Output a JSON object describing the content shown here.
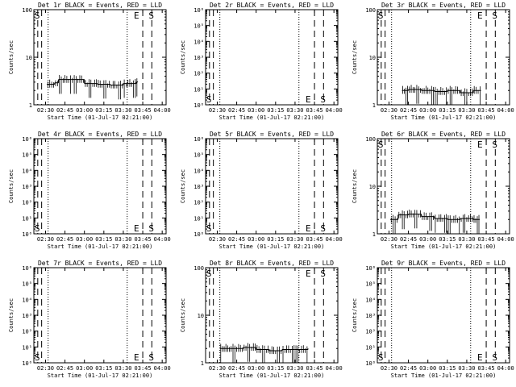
{
  "colors": {
    "background": "#ffffff",
    "foreground": "#000000"
  },
  "chart_data": [
    {
      "type": "line",
      "title": "Det 1r BLACK = Events, RED = LLD",
      "xlabel": "Start Time (01-Jul-17 02:21:00)",
      "ylabel": "Counts/sec",
      "xticks": [
        "02:30",
        "02:45",
        "03:00",
        "03:15",
        "03:30",
        "03:45",
        "04:00"
      ],
      "xlim": [
        "02:21",
        "04:03"
      ],
      "yscale": "log",
      "ylim": [
        1,
        100
      ],
      "yticks": [
        "1",
        "10",
        "100"
      ],
      "dashed_lines": [
        "02:24",
        "02:27",
        "03:45",
        "03:52"
      ],
      "dotted_lines": [
        "02:32",
        "03:33"
      ],
      "markers": [
        "S",
        "E",
        "S"
      ],
      "series": [
        {
          "x": [
            "02:31",
            "02:37",
            "02:40",
            "02:50",
            "03:00",
            "03:10",
            "03:20",
            "03:30",
            "03:40",
            "03:41"
          ],
          "values": [
            2.7,
            2.9,
            3.4,
            3.4,
            2.8,
            2.7,
            2.6,
            2.8,
            3.0,
            3.1
          ]
        }
      ]
    },
    {
      "type": "line",
      "title": "Det 2r BLACK = Events, RED = LLD",
      "xlabel": "Start Time (01-Jul-17 02:21:00)",
      "ylabel": "Counts/sec",
      "xticks": [
        "02:30",
        "02:45",
        "03:00",
        "03:15",
        "03:30",
        "03:45",
        "04:00"
      ],
      "xlim": [
        "02:21",
        "04:03"
      ],
      "yscale": "log",
      "ylim": [
        1,
        1000000
      ],
      "yticks": [
        "10⁰",
        "10¹",
        "10²",
        "10³",
        "10⁴",
        "10⁵",
        "10⁶"
      ],
      "dashed_lines": [
        "02:24",
        "02:27",
        "03:45",
        "03:52"
      ],
      "dotted_lines": [
        "02:32",
        "03:33"
      ],
      "markers": [
        "S",
        "E",
        "S"
      ],
      "series": []
    },
    {
      "type": "line",
      "title": "Det 3r BLACK = Events, RED = LLD",
      "xlabel": "Start Time (01-Jul-17 02:21:00)",
      "ylabel": "Counts/sec",
      "xticks": [
        "02:30",
        "02:45",
        "03:00",
        "03:15",
        "03:30",
        "03:45",
        "04:00"
      ],
      "xlim": [
        "02:21",
        "04:03"
      ],
      "yscale": "log",
      "ylim": [
        1,
        100
      ],
      "yticks": [
        "1",
        "10",
        "100"
      ],
      "dashed_lines": [
        "02:24",
        "02:27",
        "03:45",
        "03:52"
      ],
      "dotted_lines": [
        "02:32",
        "03:33"
      ],
      "markers": [
        "S",
        "E",
        "S"
      ],
      "series": [
        {
          "x": [
            "02:40",
            "02:45",
            "02:55",
            "03:05",
            "03:15",
            "03:25",
            "03:35",
            "03:41"
          ],
          "values": [
            2.0,
            2.1,
            2.0,
            1.9,
            2.0,
            1.8,
            2.0,
            2.0
          ]
        }
      ]
    },
    {
      "type": "line",
      "title": "Det 4r BLACK = Events, RED = LLD",
      "xlabel": "Start Time (01-Jul-17 02:21:00)",
      "ylabel": "Counts/sec",
      "xticks": [
        "02:30",
        "02:45",
        "03:00",
        "03:15",
        "03:30",
        "03:45",
        "04:00"
      ],
      "xlim": [
        "02:21",
        "04:03"
      ],
      "yscale": "log",
      "ylim": [
        1,
        1000000
      ],
      "yticks": [
        "10⁰",
        "10¹",
        "10²",
        "10³",
        "10⁴",
        "10⁵",
        "10⁶"
      ],
      "dashed_lines": [
        "02:24",
        "02:27",
        "03:45",
        "03:52"
      ],
      "dotted_lines": [
        "02:32",
        "03:33"
      ],
      "markers": [
        "S",
        "E",
        "S"
      ],
      "series": []
    },
    {
      "type": "line",
      "title": "Det 5r BLACK = Events, RED = LLD",
      "xlabel": "Start Time (01-Jul-17 02:21:00)",
      "ylabel": "Counts/sec",
      "xticks": [
        "02:30",
        "02:45",
        "03:00",
        "03:15",
        "03:30",
        "03:45",
        "04:00"
      ],
      "xlim": [
        "02:21",
        "04:03"
      ],
      "yscale": "log",
      "ylim": [
        1,
        1000000
      ],
      "yticks": [
        "10⁰",
        "10¹",
        "10²",
        "10³",
        "10⁴",
        "10⁵",
        "10⁶"
      ],
      "dashed_lines": [
        "02:24",
        "02:27",
        "03:45",
        "03:52"
      ],
      "dotted_lines": [
        "02:32",
        "03:33"
      ],
      "markers": [
        "S",
        "E",
        "S"
      ],
      "series": []
    },
    {
      "type": "line",
      "title": "Det 6r BLACK = Events, RED = LLD",
      "xlabel": "Start Time (01-Jul-17 02:21:00)",
      "ylabel": "Counts/sec",
      "xticks": [
        "02:30",
        "02:45",
        "03:00",
        "03:15",
        "03:30",
        "03:45",
        "04:00"
      ],
      "xlim": [
        "02:21",
        "04:03"
      ],
      "yscale": "log",
      "ylim": [
        1,
        100
      ],
      "yticks": [
        "1",
        "10",
        "100"
      ],
      "dashed_lines": [
        "02:24",
        "02:27",
        "03:45",
        "03:52"
      ],
      "dotted_lines": [
        "02:32",
        "03:33"
      ],
      "markers": [
        "S",
        "E",
        "S"
      ],
      "series": [
        {
          "x": [
            "02:31",
            "02:37",
            "02:45",
            "02:55",
            "03:05",
            "03:15",
            "03:25",
            "03:35",
            "03:40"
          ],
          "values": [
            2.0,
            2.5,
            2.6,
            2.3,
            2.1,
            2.0,
            2.1,
            2.0,
            2.0
          ]
        }
      ]
    },
    {
      "type": "line",
      "title": "Det 7r BLACK = Events, RED = LLD",
      "xlabel": "Start Time (01-Jul-17 02:21:00)",
      "ylabel": "Counts/sec",
      "xticks": [
        "02:30",
        "02:45",
        "03:00",
        "03:15",
        "03:30",
        "03:45",
        "04:00"
      ],
      "xlim": [
        "02:21",
        "04:03"
      ],
      "yscale": "log",
      "ylim": [
        1,
        1000000
      ],
      "yticks": [
        "10⁰",
        "10¹",
        "10²",
        "10³",
        "10⁴",
        "10⁵",
        "10⁶"
      ],
      "dashed_lines": [
        "02:24",
        "02:27",
        "03:45",
        "03:52"
      ],
      "dotted_lines": [
        "02:32",
        "03:33"
      ],
      "markers": [
        "S",
        "E",
        "S"
      ],
      "series": []
    },
    {
      "type": "line",
      "title": "Det 8r BLACK = Events, RED = LLD",
      "xlabel": "Start Time (01-Jul-17 02:21:00)",
      "ylabel": "Counts/sec",
      "xticks": [
        "02:30",
        "02:45",
        "03:00",
        "03:15",
        "03:30",
        "03:45",
        "04:00"
      ],
      "xlim": [
        "02:21",
        "04:03"
      ],
      "yscale": "log",
      "ylim": [
        1,
        100
      ],
      "yticks": [
        "1",
        "10",
        "100"
      ],
      "dashed_lines": [
        "02:24",
        "02:27",
        "03:45",
        "03:52"
      ],
      "dotted_lines": [
        "02:32",
        "03:33"
      ],
      "markers": [
        "S",
        "E",
        "S"
      ],
      "series": [
        {
          "x": [
            "02:32",
            "02:40",
            "02:50",
            "03:00",
            "03:10",
            "03:20",
            "03:30",
            "03:40"
          ],
          "values": [
            2.0,
            2.0,
            2.1,
            1.9,
            1.8,
            1.9,
            1.9,
            2.0
          ]
        }
      ]
    },
    {
      "type": "line",
      "title": "Det 9r BLACK = Events, RED = LLD",
      "xlabel": "Start Time (01-Jul-17 02:21:00)",
      "ylabel": "Counts/sec",
      "xticks": [
        "02:30",
        "02:45",
        "03:00",
        "03:15",
        "03:30",
        "03:45",
        "04:00"
      ],
      "xlim": [
        "02:21",
        "04:03"
      ],
      "yscale": "log",
      "ylim": [
        1,
        1000000
      ],
      "yticks": [
        "10⁰",
        "10¹",
        "10²",
        "10³",
        "10⁴",
        "10⁵",
        "10⁶"
      ],
      "dashed_lines": [
        "02:24",
        "02:27",
        "03:45",
        "03:52"
      ],
      "dotted_lines": [
        "02:32",
        "03:33"
      ],
      "markers": [
        "S",
        "E",
        "S"
      ],
      "series": []
    }
  ]
}
